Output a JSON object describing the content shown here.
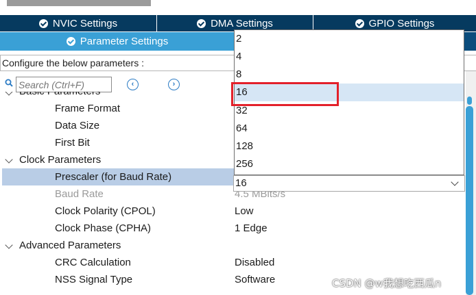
{
  "tabs": {
    "row1": [
      {
        "label": "NVIC Settings"
      },
      {
        "label": "DMA Settings"
      },
      {
        "label": "GPIO Settings"
      }
    ],
    "active": {
      "label": "Parameter Settings"
    }
  },
  "configure_label": "Configure the below parameters :",
  "search": {
    "placeholder": "Search (Ctrl+F)"
  },
  "tree": {
    "basic": {
      "label": "Basic Parameters"
    },
    "frame_format": {
      "label": "Frame Format"
    },
    "data_size": {
      "label": "Data Size"
    },
    "first_bit": {
      "label": "First Bit"
    },
    "clock": {
      "label": "Clock Parameters"
    },
    "prescaler": {
      "label": "Prescaler (for Baud Rate)",
      "value": "16"
    },
    "baud_rate": {
      "label": "Baud Rate",
      "value": "4.5 MBits/s"
    },
    "cpol": {
      "label": "Clock Polarity (CPOL)",
      "value": "Low"
    },
    "cpha": {
      "label": "Clock Phase (CPHA)",
      "value": "1 Edge"
    },
    "advanced": {
      "label": "Advanced Parameters"
    },
    "crc": {
      "label": "CRC Calculation",
      "value": "Disabled"
    },
    "nss": {
      "label": "NSS Signal Type",
      "value": "Software"
    }
  },
  "dropdown": {
    "options": [
      "2",
      "4",
      "8",
      "16",
      "32",
      "64",
      "128",
      "256"
    ],
    "highlighted_index": 3
  },
  "colors": {
    "tab_dark": "#063a5f",
    "tab_active": "#3aa0d6",
    "selection": "#b9cde6",
    "highlight_red": "#e3202a"
  },
  "watermark": "CSDN @w我想吃西瓜n"
}
